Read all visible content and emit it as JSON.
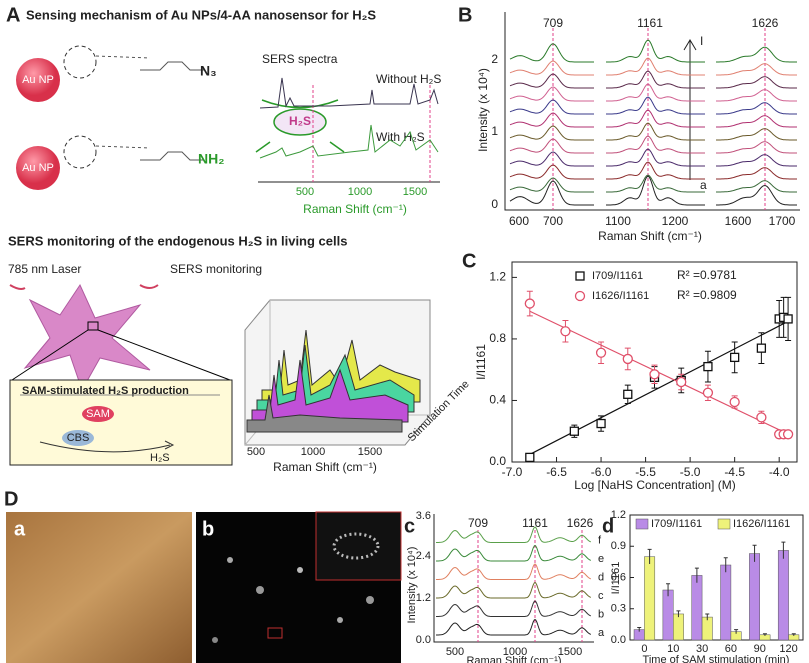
{
  "panel_a": {
    "label": "A",
    "title": "Sensing mechanism of Au NPs/4-AA nanosensor for H₂S",
    "au_np": "Au NP",
    "n3": "N₃",
    "nh2": "NH₂",
    "h2s": "H₂S",
    "inset": {
      "title": "SERS spectra",
      "without": "Without H₂S",
      "with": "With H₂S",
      "xticks": [
        "500",
        "1000",
        "1500"
      ],
      "xlabel": "Raman Shift (cm⁻¹)"
    },
    "section_title": "SERS monitoring of the endogenous H₂S in  living cells",
    "laser": "785 nm Laser",
    "monitoring": "SERS monitoring",
    "box": {
      "title": "SAM-stimulated H₂S production",
      "sam": "SAM",
      "cbs": "CBS",
      "product": "H₂S"
    },
    "plot3d": {
      "xticks": [
        "500",
        "1000",
        "1500"
      ],
      "xlabel": "Raman Shift (cm⁻¹)",
      "zlabel": "Stimulation Time"
    }
  },
  "panel_b": {
    "label": "B",
    "peaks": [
      "709",
      "1161",
      "1626"
    ],
    "yticks": [
      "0",
      "1",
      "2"
    ],
    "xticks": [
      "600",
      "700",
      "1100",
      "1200",
      "1600",
      "1700"
    ],
    "ylabel": "Intensity (x 10⁴)",
    "xlabel": "Raman Shift (cm⁻¹)",
    "top_mark": "I",
    "bottom_mark": "a"
  },
  "panel_d": {
    "label": "D",
    "image_a": "a",
    "image_b": "b",
    "spectra": {
      "label": "c",
      "peaks": [
        "709",
        "1161",
        "1626"
      ],
      "yticks": [
        "0.0",
        "1.2",
        "2.4",
        "3.6"
      ],
      "xticks": [
        "500",
        "1000",
        "1500"
      ],
      "ylabel": "Intensity (x 10⁴)",
      "xlabel": "Raman Shift (cm⁻¹)",
      "curves": [
        "a",
        "b",
        "c",
        "d",
        "e",
        "f"
      ]
    }
  },
  "chart_data": [
    {
      "type": "scatter",
      "label": "C",
      "xlabel": "Log [NaHS  Concentration] (M)",
      "ylabel": "I/I1161",
      "xlim": [
        -7.0,
        -3.8
      ],
      "ylim": [
        0,
        1.3
      ],
      "xticks": [
        {
          "value": -7,
          "label": "-7.0"
        },
        -6.5,
        {
          "value": -6,
          "label": "-6.0"
        },
        -5.5,
        {
          "value": -5,
          "label": "-5.0"
        },
        -4.5,
        {
          "value": -4,
          "label": "-4.0"
        }
      ],
      "yticks": [
        {
          "value": 0,
          "label": "0.0"
        },
        0.4,
        0.8,
        1.2
      ],
      "series": [
        {
          "name": "I709/I1161",
          "r2": "R² =0.9781",
          "color": "#111111",
          "marker": "square",
          "x": [
            -6.8,
            -6.3,
            -6.0,
            -5.7,
            -5.4,
            -5.1,
            -4.8,
            -4.5,
            -4.2,
            -4.0,
            -3.95,
            -3.9
          ],
          "values": [
            0.03,
            0.2,
            0.25,
            0.44,
            0.55,
            0.53,
            0.62,
            0.68,
            0.74,
            0.93,
            0.94,
            0.93
          ],
          "errors": [
            0.02,
            0.04,
            0.05,
            0.06,
            0.07,
            0.08,
            0.1,
            0.1,
            0.1,
            0.12,
            0.13,
            0.14
          ]
        },
        {
          "name": "I1626/I1161",
          "r2": "R² =0.9809",
          "color": "#e0506a",
          "marker": "circle",
          "x": [
            -6.8,
            -6.4,
            -6.0,
            -5.7,
            -5.4,
            -5.1,
            -4.8,
            -4.5,
            -4.2,
            -4.0,
            -3.95,
            -3.9
          ],
          "values": [
            1.03,
            0.85,
            0.71,
            0.67,
            0.57,
            0.52,
            0.45,
            0.39,
            0.29,
            0.18,
            0.18,
            0.18
          ],
          "errors": [
            0.08,
            0.07,
            0.07,
            0.07,
            0.06,
            0.05,
            0.05,
            0.04,
            0.04,
            0.02,
            0.02,
            0.02
          ]
        }
      ]
    },
    {
      "type": "bar",
      "label": "d",
      "xlabel": "Time of SAM stimulation (min)",
      "ylabel": "I/I1161",
      "categories": [
        "0",
        "10",
        "30",
        "60",
        "90",
        "120"
      ],
      "ylim": [
        0,
        1.2
      ],
      "yticks": [
        {
          "value": 0,
          "label": "0.0"
        },
        0.3,
        0.6,
        0.9,
        1.2
      ],
      "series": [
        {
          "name": "I709/I1161",
          "color": "#b98be6",
          "values": [
            0.1,
            0.48,
            0.62,
            0.72,
            0.83,
            0.86
          ],
          "errors": [
            0.02,
            0.06,
            0.07,
            0.07,
            0.08,
            0.08
          ]
        },
        {
          "name": "I1626/I1161",
          "color": "#eef27a",
          "values": [
            0.8,
            0.25,
            0.22,
            0.08,
            0.05,
            0.05
          ],
          "errors": [
            0.07,
            0.03,
            0.03,
            0.02,
            0.01,
            0.01
          ]
        }
      ]
    }
  ]
}
